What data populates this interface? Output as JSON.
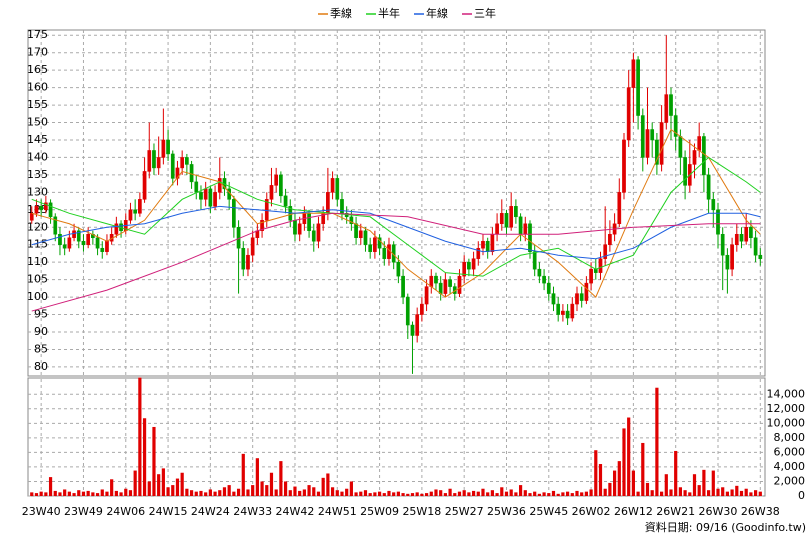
{
  "chart_data": {
    "type": "candlestick",
    "footer": "資料日期: 09/16 (Goodinfo.tw)",
    "grid": true,
    "up_color": "#e00000",
    "down_color": "#00a000",
    "volume_color": "#e00000",
    "xlim": [
      -0.8,
      156
    ],
    "ylim": [
      77.4,
      176.5
    ],
    "yticks": [
      80,
      85,
      90,
      95,
      100,
      105,
      110,
      115,
      120,
      125,
      130,
      135,
      140,
      145,
      150,
      155,
      160,
      165,
      170,
      175
    ],
    "vlim": [
      0,
      16100
    ],
    "vticks": [
      0,
      {
        "value": 2000,
        "label": "2,000"
      },
      {
        "value": 4000,
        "label": "4,000"
      },
      {
        "value": 6000,
        "label": "6,000"
      },
      {
        "value": 8000,
        "label": "8,000"
      },
      {
        "value": 10000,
        "label": "10,000"
      },
      {
        "value": 12000,
        "label": "12,000"
      },
      {
        "value": 14000,
        "label": "14,000"
      }
    ],
    "xticks": [
      {
        "value": 2,
        "label": "23W40"
      },
      {
        "value": 11,
        "label": "23W49"
      },
      {
        "value": 20,
        "label": "24W06"
      },
      {
        "value": 29,
        "label": "24W15"
      },
      {
        "value": 38,
        "label": "24W24"
      },
      {
        "value": 47,
        "label": "24W33"
      },
      {
        "value": 56,
        "label": "24W42"
      },
      {
        "value": 65,
        "label": "24W51"
      },
      {
        "value": 74,
        "label": "25W09"
      },
      {
        "value": 83,
        "label": "25W18"
      },
      {
        "value": 92,
        "label": "25W27"
      },
      {
        "value": 101,
        "label": "25W36"
      },
      {
        "value": 110,
        "label": "25W45"
      },
      {
        "value": 119,
        "label": "26W02"
      },
      {
        "value": 128,
        "label": "26W12"
      },
      {
        "value": 137,
        "label": "26W21"
      },
      {
        "value": 146,
        "label": "26W30"
      },
      {
        "value": 155,
        "label": "26W38"
      }
    ],
    "candles": {
      "open": [
        122,
        124,
        126,
        125,
        127,
        123,
        118,
        115,
        114,
        117,
        119,
        116,
        115,
        118,
        117,
        114,
        113,
        116,
        118,
        121,
        119,
        122,
        125,
        124,
        128,
        136,
        142,
        137,
        140,
        145,
        141,
        134,
        137,
        140,
        138,
        133,
        130,
        128,
        131,
        126,
        130,
        134,
        131,
        128,
        120,
        114,
        108,
        112,
        117,
        119,
        122,
        128,
        132,
        135,
        129,
        126,
        122,
        118,
        121,
        124,
        119,
        116,
        121,
        124,
        130,
        134,
        128,
        124,
        123,
        121,
        117,
        119,
        115,
        113,
        117,
        114,
        111,
        115,
        110,
        106,
        100,
        92,
        89,
        95,
        98,
        103,
        106,
        104,
        101,
        105,
        103,
        101,
        106,
        110,
        108,
        111,
        114,
        116,
        113,
        118,
        121,
        124,
        120,
        126,
        123,
        118,
        121,
        113,
        108,
        106,
        104,
        101,
        98,
        95,
        96,
        94,
        98,
        101,
        99,
        104,
        108,
        107,
        111,
        115,
        118,
        121,
        130,
        145,
        160,
        168,
        152,
        140,
        148,
        145,
        138,
        150,
        158,
        152,
        146,
        140,
        132,
        138,
        142,
        146,
        135,
        128,
        125,
        118,
        112,
        108,
        115,
        118,
        116,
        120,
        117,
        112
      ],
      "high": [
        126,
        128,
        128,
        129,
        128,
        124,
        120,
        117,
        119,
        121,
        120,
        118,
        120,
        119,
        118,
        116,
        118,
        120,
        123,
        122,
        124,
        127,
        128,
        130,
        140,
        150,
        144,
        146,
        154,
        148,
        142,
        139,
        142,
        141,
        139,
        135,
        132,
        133,
        132,
        132,
        140,
        136,
        133,
        129,
        122,
        116,
        114,
        119,
        121,
        124,
        130,
        137,
        137,
        136,
        131,
        128,
        124,
        123,
        126,
        125,
        121,
        123,
        126,
        137,
        136,
        135,
        130,
        126,
        125,
        123,
        121,
        120,
        117,
        119,
        118,
        116,
        117,
        116,
        112,
        108,
        101,
        93,
        97,
        100,
        105,
        108,
        107,
        106,
        107,
        106,
        104,
        108,
        112,
        111,
        113,
        116,
        118,
        117,
        120,
        124,
        128,
        125,
        130,
        128,
        124,
        123,
        122,
        115,
        110,
        108,
        106,
        103,
        100,
        98,
        98,
        100,
        103,
        103,
        106,
        110,
        111,
        113,
        126,
        122,
        124,
        134,
        147,
        165,
        170,
        169,
        154,
        160,
        150,
        147,
        155,
        175,
        160,
        154,
        148,
        142,
        145,
        144,
        150,
        147,
        137,
        130,
        127,
        120,
        114,
        117,
        121,
        120,
        124,
        122,
        119,
        114
      ],
      "low": [
        121,
        123,
        123,
        124,
        121,
        116,
        112,
        112,
        113,
        116,
        114,
        113,
        114,
        115,
        112,
        111,
        112,
        115,
        117,
        117,
        118,
        121,
        122,
        123,
        127,
        134,
        135,
        135,
        138,
        139,
        132,
        132,
        135,
        135,
        131,
        128,
        125,
        126,
        124,
        125,
        128,
        129,
        125,
        117,
        101,
        106,
        106,
        110,
        115,
        117,
        120,
        126,
        130,
        127,
        124,
        120,
        116,
        116,
        119,
        117,
        113,
        114,
        119,
        122,
        128,
        126,
        122,
        121,
        119,
        115,
        115,
        113,
        111,
        111,
        112,
        109,
        109,
        108,
        104,
        98,
        88,
        78,
        87,
        93,
        96,
        101,
        102,
        99,
        100,
        101,
        99,
        100,
        104,
        106,
        106,
        109,
        112,
        111,
        112,
        116,
        119,
        118,
        119,
        121,
        116,
        116,
        111,
        106,
        104,
        102,
        99,
        96,
        93,
        93,
        92,
        93,
        96,
        97,
        98,
        102,
        105,
        105,
        109,
        113,
        116,
        120,
        128,
        143,
        150,
        148,
        136,
        138,
        140,
        135,
        136,
        148,
        145,
        142,
        135,
        128,
        130,
        134,
        140,
        130,
        124,
        120,
        114,
        102,
        101,
        106,
        113,
        114,
        115,
        114,
        110,
        109
      ],
      "close": [
        124,
        126,
        125,
        127,
        123,
        118,
        115,
        114,
        117,
        119,
        116,
        115,
        118,
        117,
        114,
        113,
        116,
        118,
        121,
        119,
        122,
        125,
        124,
        128,
        136,
        142,
        137,
        140,
        145,
        141,
        134,
        137,
        140,
        138,
        133,
        130,
        128,
        131,
        126,
        130,
        134,
        131,
        128,
        120,
        114,
        108,
        112,
        117,
        119,
        122,
        128,
        132,
        135,
        129,
        126,
        122,
        118,
        121,
        124,
        119,
        116,
        121,
        124,
        130,
        134,
        128,
        124,
        123,
        121,
        117,
        119,
        115,
        113,
        117,
        114,
        111,
        115,
        110,
        106,
        100,
        92,
        89,
        95,
        98,
        103,
        106,
        104,
        101,
        105,
        103,
        101,
        106,
        110,
        108,
        111,
        114,
        116,
        113,
        118,
        121,
        124,
        120,
        126,
        123,
        118,
        121,
        113,
        108,
        106,
        104,
        101,
        98,
        95,
        96,
        94,
        98,
        101,
        99,
        104,
        108,
        107,
        111,
        115,
        118,
        121,
        130,
        145,
        160,
        168,
        152,
        140,
        148,
        145,
        138,
        150,
        158,
        152,
        146,
        140,
        132,
        138,
        142,
        146,
        135,
        128,
        125,
        118,
        112,
        108,
        115,
        118,
        116,
        120,
        117,
        112,
        111
      ]
    },
    "volume": [
      500,
      400,
      600,
      500,
      2600,
      700,
      500,
      900,
      600,
      400,
      800,
      600,
      700,
      500,
      400,
      900,
      600,
      2300,
      700,
      500,
      1000,
      800,
      3500,
      16300,
      10700,
      2000,
      9500,
      3000,
      3800,
      1200,
      1500,
      2400,
      3200,
      1000,
      800,
      600,
      700,
      500,
      900,
      600,
      800,
      1200,
      1500,
      600,
      1000,
      5800,
      900,
      1500,
      5200,
      2000,
      1500,
      3200,
      900,
      4800,
      2000,
      800,
      1300,
      700,
      900,
      1500,
      1200,
      600,
      2500,
      3100,
      1200,
      800,
      600,
      1000,
      2000,
      500,
      600,
      800,
      400,
      500,
      600,
      400,
      700,
      500,
      600,
      400,
      300,
      400,
      500,
      300,
      400,
      600,
      900,
      800,
      400,
      1000,
      400,
      600,
      800,
      500,
      700,
      600,
      1000,
      500,
      800,
      400,
      1200,
      600,
      900,
      500,
      1500,
      800,
      400,
      600,
      300,
      500,
      400,
      700,
      300,
      500,
      600,
      400,
      700,
      500,
      600,
      900,
      6300,
      4400,
      1000,
      1800,
      3500,
      4800,
      9300,
      10800,
      3500,
      600,
      7300,
      1800,
      800,
      14900,
      600,
      3000,
      900,
      6200,
      1200,
      800,
      500,
      3000,
      1500,
      3600,
      800,
      3500,
      1000,
      1200,
      600,
      900,
      1400,
      700,
      1000,
      500,
      800,
      600
    ],
    "series": [
      {
        "name": "季線",
        "color": "#e07a10",
        "x": [
          0,
          8,
          16,
          24,
          32,
          40,
          48,
          56,
          64,
          72,
          80,
          88,
          96,
          104,
          112,
          120,
          128,
          136,
          144,
          152,
          155
        ],
        "values": [
          124,
          121,
          116,
          122,
          136,
          133,
          121,
          124,
          124,
          119,
          108,
          100,
          107,
          118,
          110,
          100,
          125,
          148,
          140,
          122,
          118
        ]
      },
      {
        "name": "半年",
        "color": "#20d020",
        "x": [
          0,
          8,
          16,
          24,
          32,
          40,
          48,
          56,
          64,
          72,
          80,
          88,
          96,
          104,
          112,
          120,
          128,
          136,
          144,
          152,
          155
        ],
        "values": [
          128,
          124,
          121,
          118,
          128,
          133,
          128,
          125,
          124,
          123,
          115,
          107,
          106,
          112,
          114,
          108,
          112,
          130,
          140,
          133,
          130
        ]
      },
      {
        "name": "年線",
        "color": "#2060e0",
        "x": [
          0,
          8,
          16,
          24,
          32,
          40,
          48,
          56,
          64,
          72,
          80,
          88,
          96,
          104,
          112,
          120,
          128,
          136,
          144,
          152,
          155
        ],
        "values": [
          115,
          118,
          120,
          121,
          124,
          126,
          125,
          124,
          125,
          124,
          120,
          116,
          113,
          114,
          112,
          111,
          114,
          120,
          124,
          124,
          123
        ]
      },
      {
        "name": "三年",
        "color": "#d0207a",
        "x": [
          0,
          16,
          32,
          48,
          56,
          64,
          80,
          96,
          112,
          128,
          144,
          155
        ],
        "values": [
          96,
          102,
          110,
          119,
          122,
          124,
          123,
          118,
          118,
          120,
          121,
          121
        ]
      }
    ]
  }
}
